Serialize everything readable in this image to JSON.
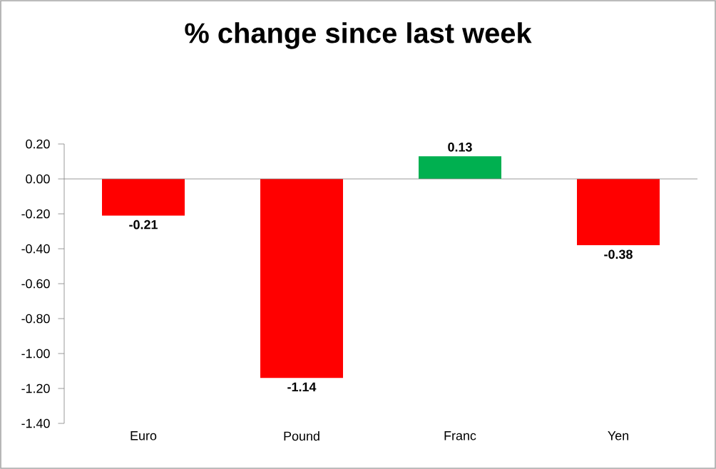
{
  "chart_data": {
    "type": "bar",
    "title": "% change since last week",
    "categories": [
      "Euro",
      "Pound",
      "Franc",
      "Yen"
    ],
    "values": [
      -0.21,
      -1.14,
      0.13,
      -0.38
    ],
    "colors": [
      "#ff0000",
      "#ff0000",
      "#00b050",
      "#ff0000"
    ],
    "ylim": [
      -1.4,
      0.2
    ],
    "yticks": [
      {
        "value": -1.4,
        "label": "-1.40"
      },
      {
        "value": -1.2,
        "label": "-1.20"
      },
      {
        "value": -1.0,
        "label": "-1.00"
      },
      {
        "value": -0.8,
        "label": "-0.80"
      },
      {
        "value": -0.6,
        "label": "-0.60"
      },
      {
        "value": -0.4,
        "label": "-0.40"
      },
      {
        "value": -0.2,
        "label": "-0.20"
      },
      {
        "value": 0,
        "label": "0.00"
      },
      {
        "value": 0.2,
        "label": "0.20"
      }
    ],
    "data_labels": true
  }
}
